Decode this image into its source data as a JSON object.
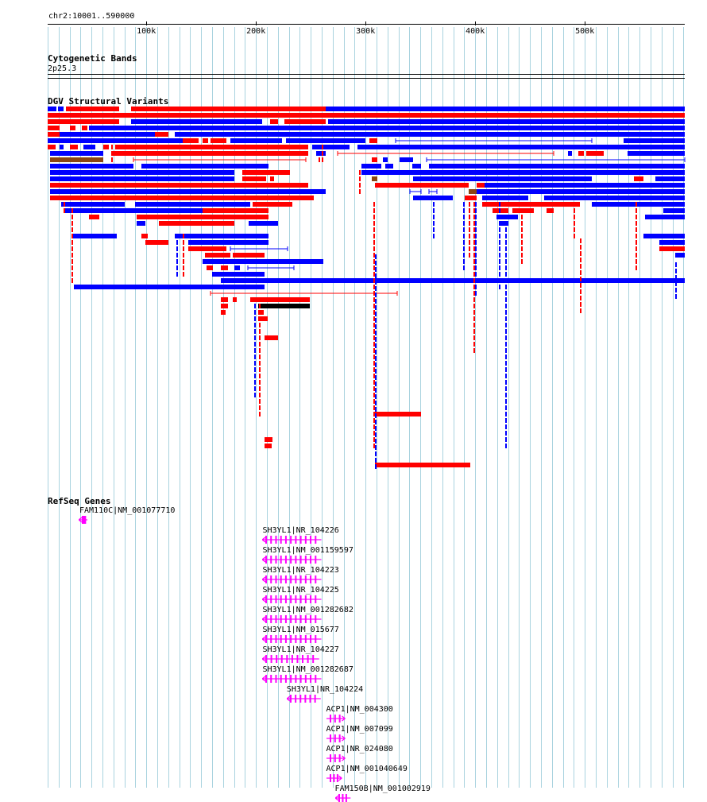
{
  "ruler": {
    "range_label": "chr2:10001..590000",
    "ticks": [
      {
        "label": "100k",
        "pos": 100000
      },
      {
        "label": "200k",
        "pos": 200000
      },
      {
        "label": "300k",
        "pos": 300000
      },
      {
        "label": "400k",
        "pos": 400000
      },
      {
        "label": "500k",
        "pos": 500000
      }
    ]
  },
  "cytobands": {
    "title": "Cytogenetic Bands",
    "band": "2p25.3"
  },
  "dgv": {
    "title": "DGV Structural Variants"
  },
  "refseq": {
    "title": "RefSeq Genes",
    "genes": [
      {
        "label": "FAM110C|NM_001077710",
        "start": 38000,
        "end": 46000,
        "strand": "-"
      },
      {
        "label": "SH3YL1|NR_104226",
        "start": 206000,
        "end": 260000,
        "strand": "-"
      },
      {
        "label": "SH3YL1|NM_001159597",
        "start": 206000,
        "end": 260000,
        "strand": "-"
      },
      {
        "label": "SH3YL1|NR_104223",
        "start": 206000,
        "end": 260000,
        "strand": "-"
      },
      {
        "label": "SH3YL1|NR_104225",
        "start": 206000,
        "end": 260000,
        "strand": "-"
      },
      {
        "label": "SH3YL1|NM_001282682",
        "start": 206000,
        "end": 260000,
        "strand": "-"
      },
      {
        "label": "SH3YL1|NM_015677",
        "start": 206000,
        "end": 260000,
        "strand": "-"
      },
      {
        "label": "SH3YL1|NR_104227",
        "start": 206000,
        "end": 258000,
        "strand": "-"
      },
      {
        "label": "SH3YL1|NM_001282687",
        "start": 206000,
        "end": 260000,
        "strand": "-"
      },
      {
        "label": "SH3YL1|NR_104224",
        "start": 228000,
        "end": 259000,
        "strand": "-"
      },
      {
        "label": "ACP1|NM_004300",
        "start": 264000,
        "end": 281000,
        "strand": "+"
      },
      {
        "label": "ACP1|NM_007099",
        "start": 264000,
        "end": 281000,
        "strand": "+"
      },
      {
        "label": "ACP1|NR_024080",
        "start": 264000,
        "end": 281000,
        "strand": "+"
      },
      {
        "label": "ACP1|NM_001040649",
        "start": 264000,
        "end": 278000,
        "strand": "+"
      },
      {
        "label": "FAM150B|NM_001002919",
        "start": 272000,
        "end": 286000,
        "strand": "-"
      }
    ]
  },
  "colors": {
    "gain": "#ff0000",
    "loss": "#0000ff",
    "other": "#8b4513",
    "inversion": "#000000",
    "gene": "#ff00ff",
    "grid": "#a9d3df"
  }
}
